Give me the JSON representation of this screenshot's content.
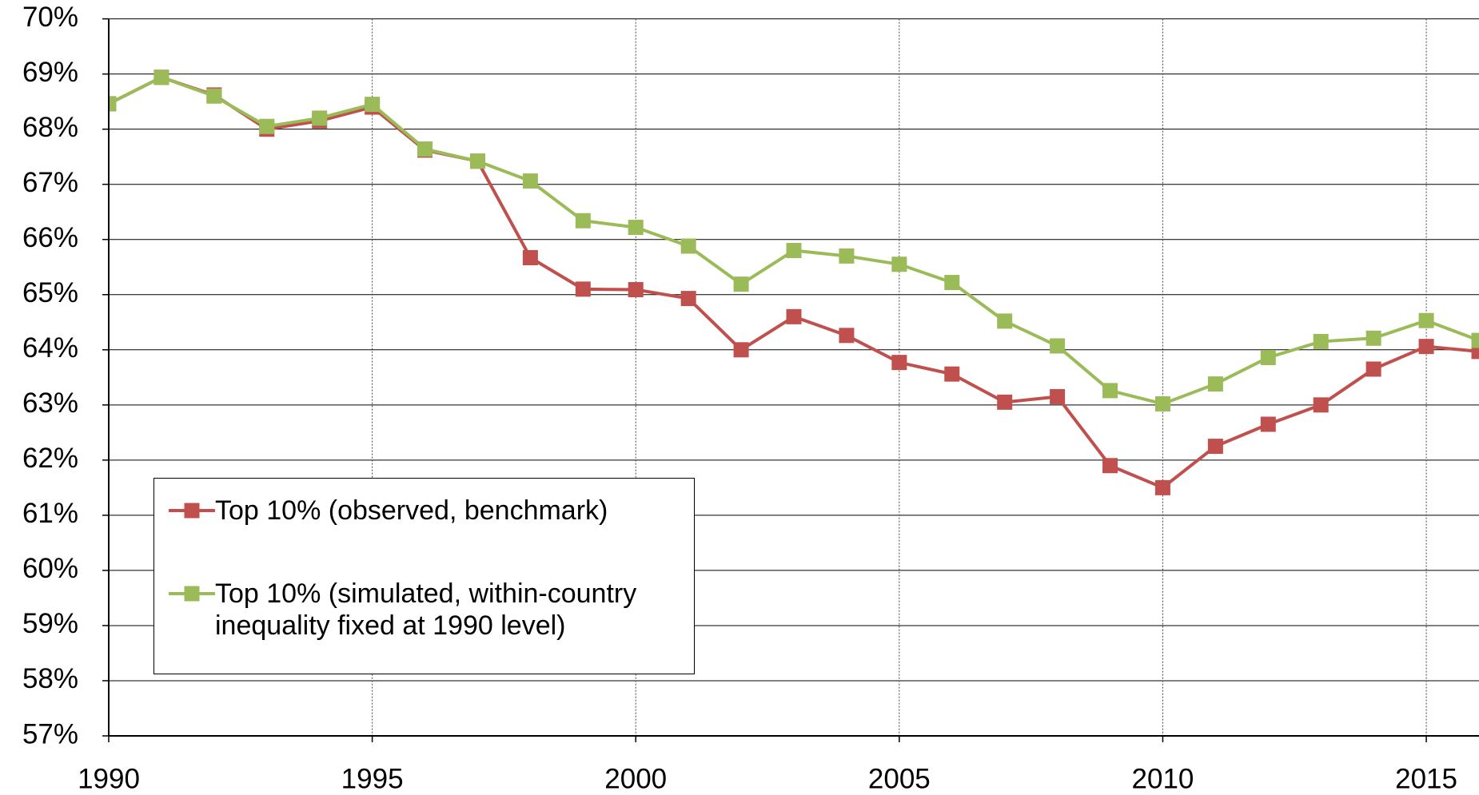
{
  "chart_data": {
    "type": "line",
    "x": [
      1990,
      1991,
      1992,
      1993,
      1994,
      1995,
      1996,
      1997,
      1998,
      1999,
      2000,
      2001,
      2002,
      2003,
      2004,
      2005,
      2006,
      2007,
      2008,
      2009,
      2010,
      2011,
      2012,
      2013,
      2014,
      2015,
      2016
    ],
    "series": [
      {
        "name": "Top 10% (observed, benchmark)",
        "color": "#c0504d",
        "values": [
          68.46,
          68.94,
          68.62,
          68.0,
          68.15,
          68.4,
          67.62,
          67.42,
          65.67,
          65.1,
          65.09,
          64.93,
          64.0,
          64.6,
          64.26,
          63.77,
          63.56,
          63.05,
          63.15,
          61.9,
          61.5,
          62.25,
          62.65,
          63.0,
          63.65,
          64.06,
          63.97
        ]
      },
      {
        "name": "Top 10% (simulated, within-country inequality fixed at 1990 level)",
        "color": "#9bbb59",
        "values": [
          68.46,
          68.94,
          68.6,
          68.05,
          68.2,
          68.45,
          67.64,
          67.42,
          67.06,
          66.34,
          66.22,
          65.88,
          65.19,
          65.8,
          65.7,
          65.55,
          65.22,
          64.52,
          64.07,
          63.26,
          63.02,
          63.38,
          63.86,
          64.15,
          64.21,
          64.53,
          64.17
        ]
      }
    ],
    "xlim": [
      1990,
      2016
    ],
    "xticks": [
      1990,
      1995,
      2000,
      2005,
      2010,
      2015
    ],
    "ylim": [
      57,
      70
    ],
    "yticks": [
      {
        "value": 57,
        "label": "57%"
      },
      {
        "value": 58,
        "label": "58%"
      },
      {
        "value": 59,
        "label": "59%"
      },
      {
        "value": 60,
        "label": "60%"
      },
      {
        "value": 61,
        "label": "61%"
      },
      {
        "value": 62,
        "label": "62%"
      },
      {
        "value": 63,
        "label": "63%"
      },
      {
        "value": 64,
        "label": "64%"
      },
      {
        "value": 65,
        "label": "65%"
      },
      {
        "value": 66,
        "label": "66%"
      },
      {
        "value": 67,
        "label": "67%"
      },
      {
        "value": 68,
        "label": "68%"
      },
      {
        "value": 69,
        "label": "69%"
      },
      {
        "value": 70,
        "label": "70%"
      }
    ],
    "grid": true,
    "legend": "lower left"
  }
}
